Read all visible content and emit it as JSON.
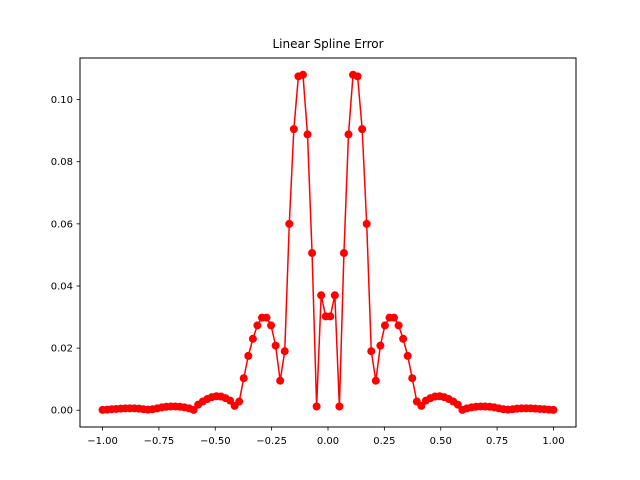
{
  "chart_data": {
    "type": "line",
    "title": "Linear Spline Error",
    "xlabel": "",
    "ylabel": "",
    "xlim": [
      -1.1,
      1.1
    ],
    "ylim": [
      -0.0054,
      0.1134
    ],
    "xticks": [
      -1.0,
      -0.75,
      -0.5,
      -0.25,
      0.0,
      0.25,
      0.5,
      0.75,
      1.0
    ],
    "xtick_labels": [
      "−1.00",
      "−0.75",
      "−0.50",
      "−0.25",
      "0.00",
      "0.25",
      "0.50",
      "0.75",
      "1.00"
    ],
    "yticks": [
      0.0,
      0.02,
      0.04,
      0.06,
      0.08,
      0.1
    ],
    "ytick_labels": [
      "0.00",
      "0.02",
      "0.04",
      "0.06",
      "0.08",
      "0.10"
    ],
    "grid": false,
    "legend": "none",
    "color": "#ff0000",
    "marker": "circle",
    "series": [
      {
        "x": [
          -1.0,
          -0.9798,
          -0.9596,
          -0.9394,
          -0.9192,
          -0.899,
          -0.8788,
          -0.8586,
          -0.8384,
          -0.8182,
          -0.798,
          -0.7778,
          -0.7576,
          -0.7374,
          -0.7172,
          -0.697,
          -0.6768,
          -0.6566,
          -0.6364,
          -0.6162,
          -0.596,
          -0.5758,
          -0.5556,
          -0.5354,
          -0.5152,
          -0.495,
          -0.4747,
          -0.4545,
          -0.4343,
          -0.4141,
          -0.3939,
          -0.3737,
          -0.3535,
          -0.3333,
          -0.3131,
          -0.2929,
          -0.2727,
          -0.2525,
          -0.2323,
          -0.2121,
          -0.1919,
          -0.1717,
          -0.1515,
          -0.1313,
          -0.1111,
          -0.0909,
          -0.0707,
          -0.0505,
          -0.0303,
          -0.0101,
          0.0101,
          0.0303,
          0.0505,
          0.0707,
          0.0909,
          0.1111,
          0.1313,
          0.1515,
          0.1717,
          0.1919,
          0.2121,
          0.2323,
          0.2525,
          0.2727,
          0.2929,
          0.3131,
          0.3333,
          0.3535,
          0.3737,
          0.3939,
          0.4141,
          0.4343,
          0.4545,
          0.4747,
          0.495,
          0.5152,
          0.5354,
          0.5556,
          0.5758,
          0.596,
          0.6162,
          0.6364,
          0.6566,
          0.6768,
          0.697,
          0.7172,
          0.7374,
          0.7576,
          0.7778,
          0.798,
          0.8182,
          0.8384,
          0.8586,
          0.8788,
          0.899,
          0.9192,
          0.9394,
          0.9596,
          0.9798,
          1.0
        ],
        "y": [
          0.0001,
          0.0002,
          0.0003,
          0.0004,
          0.0005,
          0.0006,
          0.0006,
          0.0006,
          0.0005,
          0.0003,
          0.0002,
          0.0003,
          0.0006,
          0.0009,
          0.0011,
          0.0012,
          0.0012,
          0.0011,
          0.0009,
          0.0006,
          0.0001,
          0.0018,
          0.0028,
          0.0036,
          0.0042,
          0.0045,
          0.0044,
          0.0039,
          0.0031,
          0.0014,
          0.0028,
          0.0103,
          0.0175,
          0.023,
          0.0273,
          0.0298,
          0.0298,
          0.0273,
          0.0208,
          0.0095,
          0.019,
          0.06,
          0.0905,
          0.1075,
          0.108,
          0.0888,
          0.0506,
          0.0012,
          0.037,
          0.0302,
          0.0302,
          0.037,
          0.0012,
          0.0506,
          0.0888,
          0.108,
          0.1075,
          0.0905,
          0.06,
          0.019,
          0.0095,
          0.0208,
          0.0273,
          0.0298,
          0.0298,
          0.0273,
          0.023,
          0.0175,
          0.0103,
          0.0028,
          0.0014,
          0.0031,
          0.0039,
          0.0044,
          0.0045,
          0.0042,
          0.0036,
          0.0028,
          0.0018,
          0.0001,
          0.0006,
          0.0009,
          0.0011,
          0.0012,
          0.0012,
          0.0011,
          0.0009,
          0.0006,
          0.0003,
          0.0002,
          0.0003,
          0.0005,
          0.0006,
          0.0006,
          0.0006,
          0.0005,
          0.0004,
          0.0003,
          0.0002,
          0.0001
        ]
      }
    ]
  }
}
